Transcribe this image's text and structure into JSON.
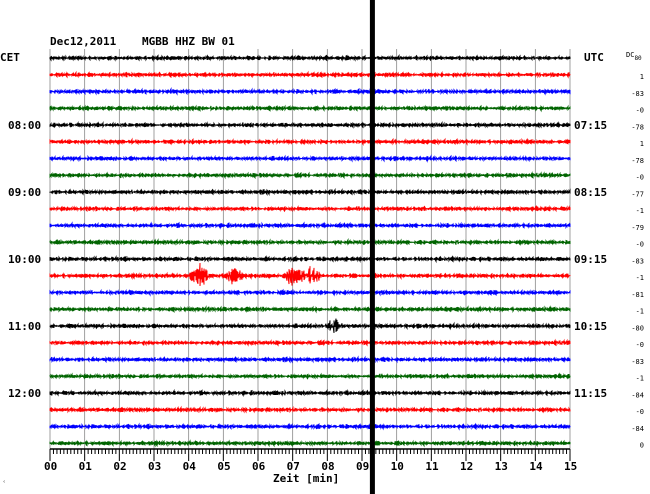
{
  "header": {
    "date": "Dec12,2011",
    "station": "MGBB HHZ BW 01",
    "left_tz": "CET",
    "right_tz": "UTC",
    "dc_label": "DC",
    "dc_label_sub": "80"
  },
  "footer": {
    "xlabel": "Zeit [min]",
    "corner_mark": "ʿ"
  },
  "colors": {
    "trace_cycle": [
      "#000000",
      "#ff0000",
      "#0000ff",
      "#006400"
    ],
    "grid": "#888888",
    "marker": "#000000"
  },
  "chart_data": {
    "type": "line",
    "title": "Dec12,2011   MGBB HHZ BW 01",
    "xlabel": "Zeit [min]",
    "ylabel": "",
    "x_ticks": [
      "00",
      "01",
      "02",
      "03",
      "04",
      "05",
      "06",
      "07",
      "08",
      "09",
      "10",
      "11",
      "12",
      "13",
      "14",
      "15"
    ],
    "xlim": [
      0,
      15
    ],
    "grid": true,
    "trace_count": 24,
    "left_hour_labels": [
      {
        "trace": 4,
        "text": "08:00"
      },
      {
        "trace": 8,
        "text": "09:00"
      },
      {
        "trace": 12,
        "text": "10:00"
      },
      {
        "trace": 16,
        "text": "11:00"
      },
      {
        "trace": 20,
        "text": "12:00"
      }
    ],
    "right_hour_labels": [
      {
        "trace": 4,
        "text": "07:15"
      },
      {
        "trace": 8,
        "text": "08:15"
      },
      {
        "trace": 12,
        "text": "09:15"
      },
      {
        "trace": 16,
        "text": "10:15"
      },
      {
        "trace": 20,
        "text": "11:15"
      }
    ],
    "dc_offsets": [
      "1",
      "-83",
      "-0",
      "-78",
      "1",
      "-78",
      "-0",
      "-77",
      "-1",
      "-79",
      "-0",
      "-83",
      "-1",
      "-81",
      "-1",
      "-80",
      "-0",
      "-83",
      "-1",
      "-84",
      "-0",
      "-84",
      "0"
    ],
    "events": [
      {
        "trace": 13,
        "minute": 4.3,
        "amplitude": 3.2
      },
      {
        "trace": 13,
        "minute": 5.3,
        "amplitude": 1.8
      },
      {
        "trace": 13,
        "minute": 7.0,
        "amplitude": 2.4
      },
      {
        "trace": 13,
        "minute": 7.5,
        "amplitude": 3.0
      },
      {
        "trace": 16,
        "minute": 8.2,
        "amplitude": 1.6
      }
    ],
    "marker_minute": 9.3
  }
}
